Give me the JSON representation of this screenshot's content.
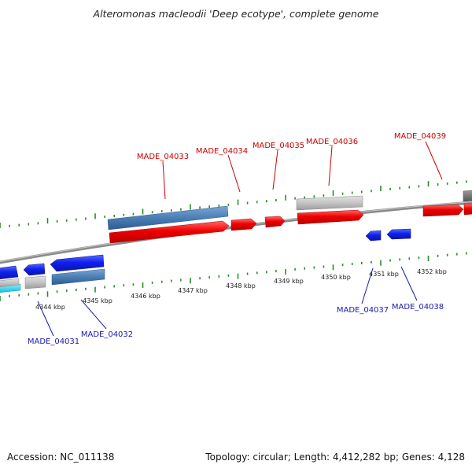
{
  "title": "Alteromonas macleodii 'Deep ecotype', complete genome",
  "accession": "Accession: NC_011138",
  "summary": "Topology: circular; Length: 4,412,282 bp; Genes: 4,128",
  "colors": {
    "forward_gene": "#ee0000",
    "reverse_gene": "#0a14dd",
    "forward_label": "#cc0000",
    "reverse_label": "#1a1ab0",
    "cds_steel": "#4a7fb5",
    "misc_feature": "#c0c0c0",
    "backbone": "#8a8a8a",
    "ticks": "#2a8a2a",
    "cyan_feature": "#22ccee"
  },
  "scale_labels": [
    "4344 kbp",
    "4345 kbp",
    "4346 kbp",
    "4347 kbp",
    "4348 kbp",
    "4349 kbp",
    "4350 kbp",
    "4351 kbp",
    "4352 kbp"
  ],
  "gene_labels": {
    "forward": [
      "MADE_04033",
      "MADE_04034",
      "MADE_04035",
      "MADE_04036",
      "MADE_04039"
    ],
    "reverse": [
      "MADE_04031",
      "MADE_04032",
      "MADE_04037",
      "MADE_04038"
    ]
  }
}
